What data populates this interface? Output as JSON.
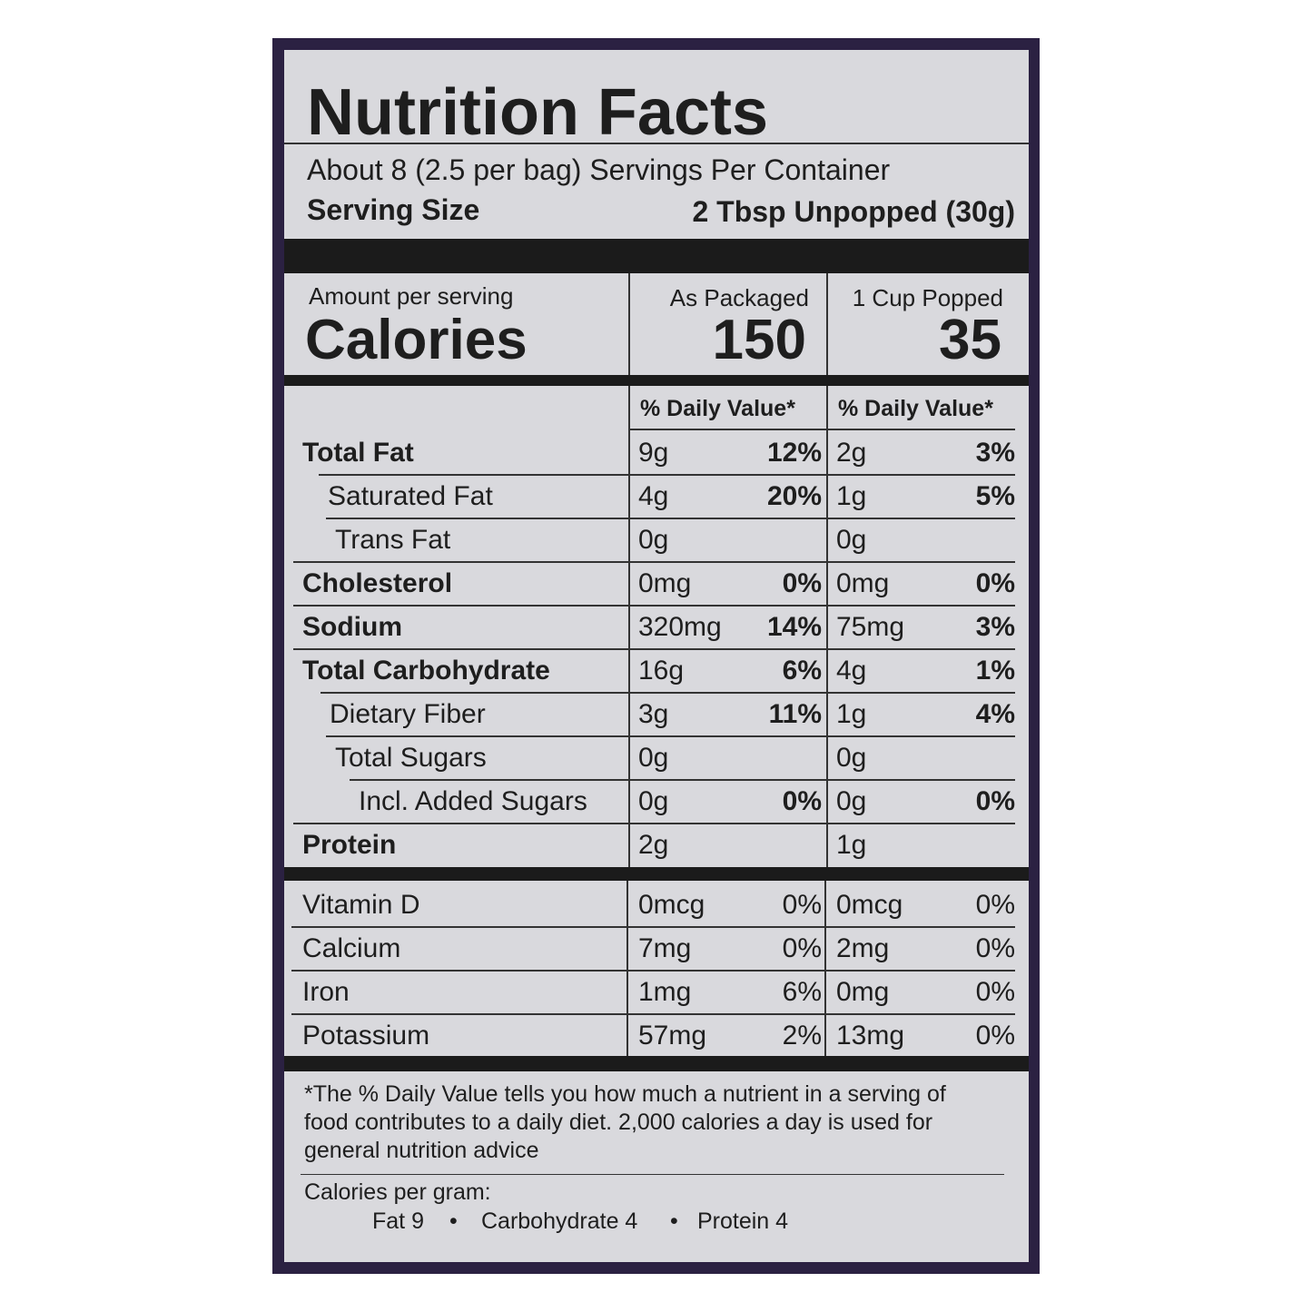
{
  "title": "Nutrition Facts",
  "servings": "About 8 (2.5 per bag) Servings Per Container",
  "serving_size": {
    "label": "Serving Size",
    "value": "2 Tbsp Unpopped (30g)"
  },
  "calories": {
    "amount_label": "Amount per serving",
    "label": "Calories",
    "columns": [
      {
        "name": "As Packaged",
        "value": 150
      },
      {
        "name": "1 Cup Popped",
        "value": 35
      }
    ]
  },
  "dv_header": [
    "% Daily Value*",
    "% Daily Value*"
  ],
  "nutrients": [
    {
      "name": "Total Fat",
      "packaged": {
        "amount": "9g",
        "dv": "12%"
      },
      "popped": {
        "amount": "2g",
        "dv": "3%"
      }
    },
    {
      "name": "Saturated Fat",
      "packaged": {
        "amount": "4g",
        "dv": "20%"
      },
      "popped": {
        "amount": "1g",
        "dv": "5%"
      }
    },
    {
      "name": "Trans Fat",
      "packaged": {
        "amount": "0g"
      },
      "popped": {
        "amount": "0g"
      }
    },
    {
      "name": "Cholesterol",
      "packaged": {
        "amount": "0mg",
        "dv": "0%"
      },
      "popped": {
        "amount": "0mg",
        "dv": "0%"
      }
    },
    {
      "name": "Sodium",
      "packaged": {
        "amount": "320mg",
        "dv": "14%"
      },
      "popped": {
        "amount": "75mg",
        "dv": "3%"
      }
    },
    {
      "name": "Total Carbohydrate",
      "packaged": {
        "amount": "16g",
        "dv": "6%"
      },
      "popped": {
        "amount": "4g",
        "dv": "1%"
      }
    },
    {
      "name": "Dietary Fiber",
      "packaged": {
        "amount": "3g",
        "dv": "11%"
      },
      "popped": {
        "amount": "1g",
        "dv": "4%"
      }
    },
    {
      "name": "Total Sugars",
      "packaged": {
        "amount": "0g"
      },
      "popped": {
        "amount": "0g"
      }
    },
    {
      "name": "Incl. Added Sugars",
      "packaged": {
        "amount": "0g",
        "dv": "0%"
      },
      "popped": {
        "amount": "0g",
        "dv": "0%"
      }
    },
    {
      "name": "Protein",
      "packaged": {
        "amount": "2g"
      },
      "popped": {
        "amount": "1g"
      }
    }
  ],
  "vitamins": [
    {
      "name": "Vitamin D",
      "packaged": {
        "amount": "0mcg",
        "dv": "0%"
      },
      "popped": {
        "amount": "0mcg",
        "dv": "0%"
      }
    },
    {
      "name": "Calcium",
      "packaged": {
        "amount": "7mg",
        "dv": "0%"
      },
      "popped": {
        "amount": "2mg",
        "dv": "0%"
      }
    },
    {
      "name": "Iron",
      "packaged": {
        "amount": "1mg",
        "dv": "6%"
      },
      "popped": {
        "amount": "0mg",
        "dv": "0%"
      }
    },
    {
      "name": "Potassium",
      "packaged": {
        "amount": "57mg",
        "dv": "2%"
      },
      "popped": {
        "amount": "13mg",
        "dv": "0%"
      }
    }
  ],
  "footnote": "*The % Daily Value tells you how much a nutrient in a serving of food contributes to a daily diet. 2,000 calories a day is used for general nutrition advice",
  "calories_per_gram": {
    "label": "Calories per gram:",
    "items": [
      "Fat 9",
      "Carbohydrate 4",
      "Protein 4"
    ]
  }
}
